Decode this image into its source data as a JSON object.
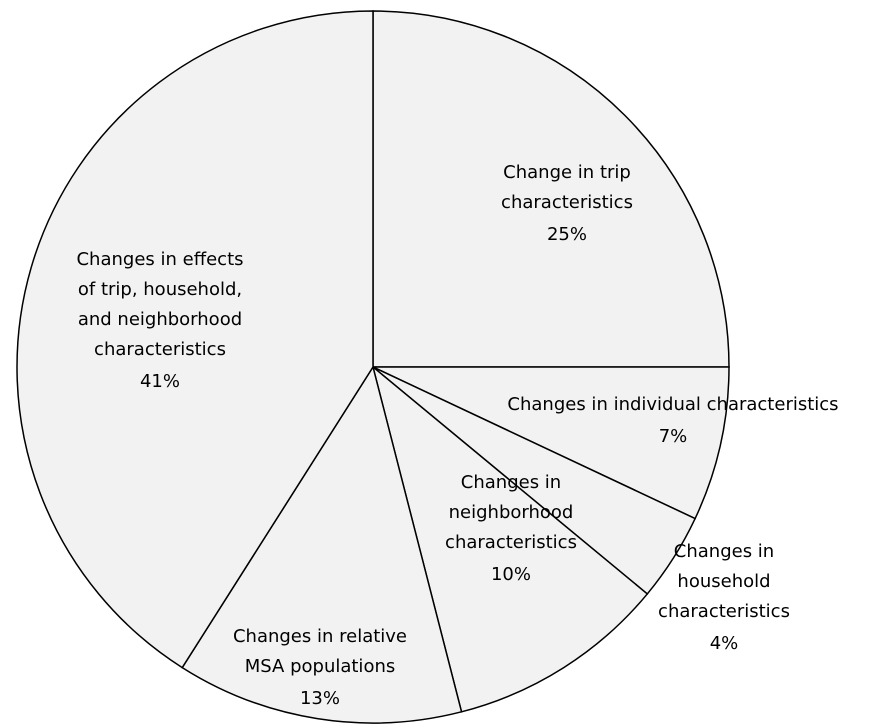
{
  "chart_data": {
    "type": "pie",
    "categories": [
      "Change in trip\ncharacteristics",
      "Changes in individual characteristics",
      "Changes in\nhousehold\ncharacteristics",
      "Changes in\nneighborhood\ncharacteristics",
      "Changes in relative\nMSA populations",
      "Changes in effects\nof trip, household,\nand neighborhood\ncharacteristics"
    ],
    "values": [
      25,
      7,
      4,
      10,
      13,
      41
    ],
    "value_labels": [
      "25%",
      "7%",
      "4%",
      "10%",
      "13%",
      "41%"
    ],
    "color": "#f2f2f2"
  }
}
